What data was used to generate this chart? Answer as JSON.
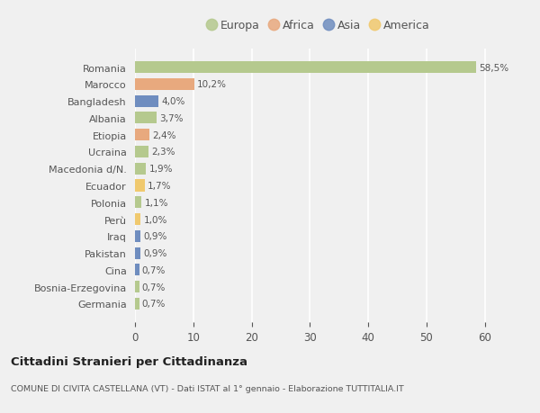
{
  "countries": [
    "Romania",
    "Marocco",
    "Bangladesh",
    "Albania",
    "Etiopia",
    "Ucraina",
    "Macedonia d/N.",
    "Ecuador",
    "Polonia",
    "Perù",
    "Iraq",
    "Pakistan",
    "Cina",
    "Bosnia-Erzegovina",
    "Germania"
  ],
  "values": [
    58.5,
    10.2,
    4.0,
    3.7,
    2.4,
    2.3,
    1.9,
    1.7,
    1.1,
    1.0,
    0.9,
    0.9,
    0.7,
    0.7,
    0.7
  ],
  "labels": [
    "58,5%",
    "10,2%",
    "4,0%",
    "3,7%",
    "2,4%",
    "2,3%",
    "1,9%",
    "1,7%",
    "1,1%",
    "1,0%",
    "0,9%",
    "0,9%",
    "0,7%",
    "0,7%",
    "0,7%"
  ],
  "continents": [
    "Europa",
    "Africa",
    "Asia",
    "Europa",
    "Africa",
    "Europa",
    "Europa",
    "America",
    "Europa",
    "America",
    "Asia",
    "Asia",
    "Asia",
    "Europa",
    "Europa"
  ],
  "continent_colors": {
    "Europa": "#b5c98e",
    "Africa": "#e8a97e",
    "Asia": "#6f8dbf",
    "America": "#f0c96e"
  },
  "legend_items": [
    "Europa",
    "Africa",
    "Asia",
    "America"
  ],
  "legend_colors": [
    "#b5c98e",
    "#e8a97e",
    "#6f8dbf",
    "#f0c96e"
  ],
  "title": "Cittadini Stranieri per Cittadinanza",
  "subtitle": "COMUNE DI CIVITA CASTELLANA (VT) - Dati ISTAT al 1° gennaio - Elaborazione TUTTITALIA.IT",
  "xlim": [
    0,
    63
  ],
  "xticks": [
    0,
    10,
    20,
    30,
    40,
    50,
    60
  ],
  "background_color": "#f0f0f0",
  "plot_bg_color": "#f0f0f0",
  "grid_color": "#ffffff",
  "bar_height": 0.7,
  "text_color": "#555555",
  "title_color": "#222222"
}
